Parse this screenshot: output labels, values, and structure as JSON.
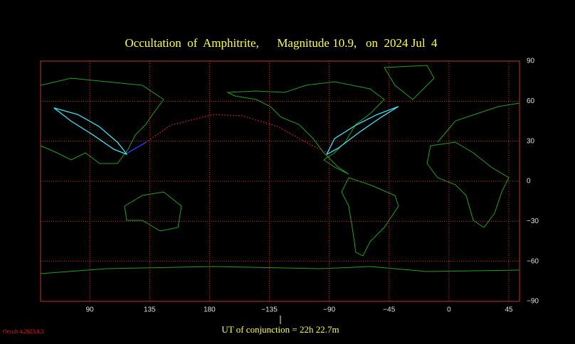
{
  "chart_data": {
    "type": "line",
    "title": "Occultation  of  Amphitrite,      Magnitude 10.9,   on  2024 Jul  4",
    "footer": "UT of conjunction = 22h 22.7m",
    "version": "Occult 4.2023.8.5",
    "xlim": [
      53,
      413
    ],
    "ylim": [
      -90,
      90
    ],
    "grid": true,
    "xticks": [
      90,
      135,
      180,
      {
        "value": 225,
        "label": "−135"
      },
      {
        "value": 270,
        "label": "−90"
      },
      {
        "value": 315,
        "label": "−45"
      },
      {
        "value": 360,
        "label": "0"
      },
      {
        "value": 405,
        "label": "45"
      }
    ],
    "yticks": [
      90,
      60,
      30,
      0,
      {
        "value": -30,
        "label": "−30"
      },
      {
        "value": -60,
        "label": "−60"
      },
      {
        "value": -90,
        "label": "−90"
      }
    ],
    "series": [
      {
        "color": "#e02020",
        "dashed": true,
        "x": [
          132,
          151,
          183,
          205,
          231,
          253,
          269
        ],
        "values": [
          29,
          42,
          50,
          49,
          41,
          29,
          21
        ]
      },
      {
        "color": "#2040ff",
        "dashed": false,
        "x": [
          118,
          132
        ],
        "values": [
          21,
          29
        ]
      },
      {
        "color": "#40e0f0",
        "dashed": false,
        "x": [
          118,
          111,
          97,
          81,
          63,
          76,
          92,
          108,
          118
        ],
        "values": [
          20,
          29,
          41,
          50,
          55,
          45,
          35,
          24,
          20
        ]
      },
      {
        "color": "#40e0f0",
        "dashed": false,
        "x": [
          268,
          274,
          290,
          306,
          322,
          309,
          293,
          277,
          268
        ],
        "values": [
          20,
          32,
          42,
          50,
          56,
          48,
          37,
          25,
          20
        ]
      }
    ]
  }
}
